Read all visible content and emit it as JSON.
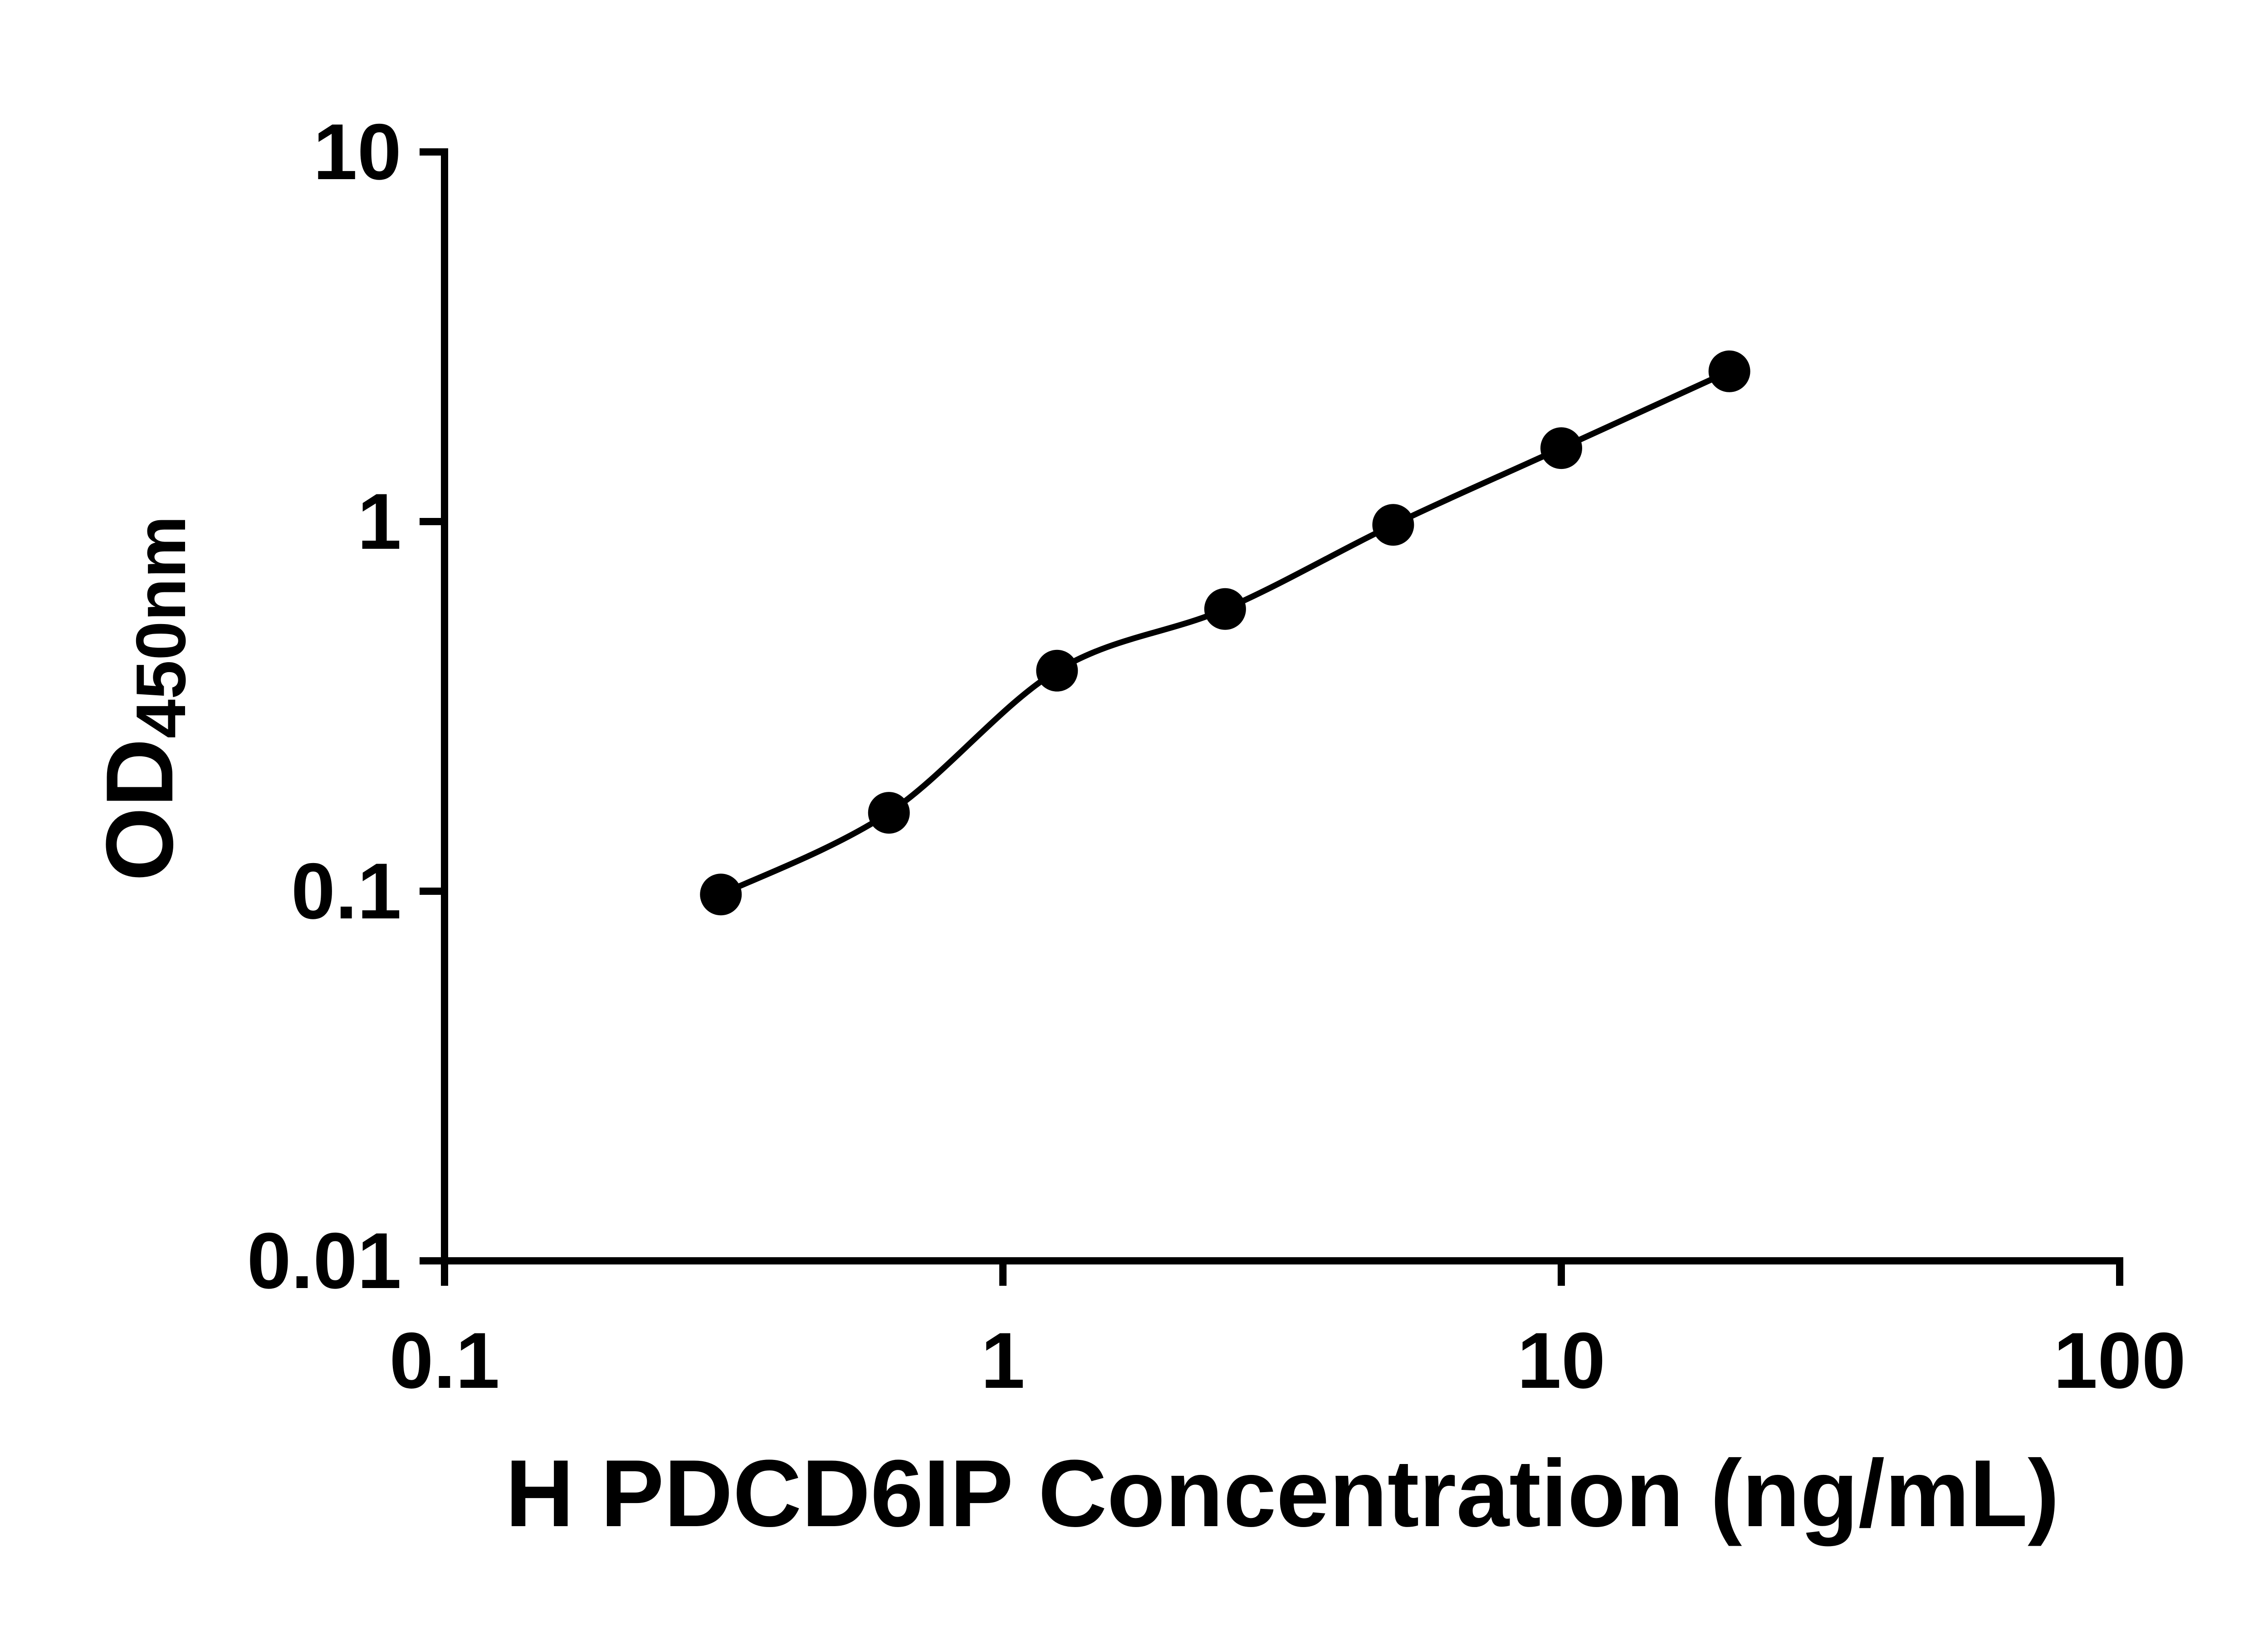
{
  "figure": {
    "background": "#ffffff",
    "ink_color": "#000000"
  },
  "chart_data": {
    "type": "scatter",
    "title": "",
    "xlabel": "H PDCD6IP Concentration (ng/mL)",
    "ylabel_main": "OD",
    "ylabel_sub": "450nm",
    "x_scale": "log",
    "y_scale": "log",
    "xlim": [
      0.1,
      100
    ],
    "ylim": [
      0.01,
      10
    ],
    "grid": false,
    "legend": false,
    "marker_color": "#000000",
    "line_color": "#000000",
    "x_ticks": [
      {
        "value": 0.1,
        "label": "0.1"
      },
      {
        "value": 1,
        "label": "1"
      },
      {
        "value": 10,
        "label": "10"
      },
      {
        "value": 100,
        "label": "100"
      }
    ],
    "y_ticks": [
      {
        "value": 0.01,
        "label": "0.01"
      },
      {
        "value": 0.1,
        "label": "0.1"
      },
      {
        "value": 1,
        "label": "1"
      },
      {
        "value": 10,
        "label": "10"
      }
    ],
    "points": [
      {
        "x": 0.3125,
        "y": 0.098
      },
      {
        "x": 0.625,
        "y": 0.163
      },
      {
        "x": 1.25,
        "y": 0.395
      },
      {
        "x": 2.5,
        "y": 0.58
      },
      {
        "x": 5,
        "y": 0.98
      },
      {
        "x": 10,
        "y": 1.58
      },
      {
        "x": 20,
        "y": 2.55
      }
    ],
    "fit_curve": true
  }
}
